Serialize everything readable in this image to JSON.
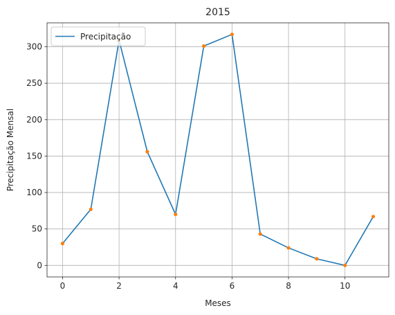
{
  "chart_data": {
    "type": "line",
    "title": "2015",
    "xlabel": "Meses",
    "ylabel": "Precipitação Mensal",
    "xlim": [
      -0.55,
      11.55
    ],
    "ylim": [
      -15.85,
      332.85
    ],
    "x_ticks": [
      0,
      2,
      4,
      6,
      8,
      10
    ],
    "y_ticks": [
      0,
      50,
      100,
      150,
      200,
      250,
      300
    ],
    "grid": true,
    "legend_position": "upper-left",
    "series": [
      {
        "name": "Precipitação",
        "color": "#1f77b4",
        "marker_color": "#ff7f0e",
        "x": [
          0,
          1,
          2,
          3,
          4,
          5,
          6,
          7,
          8,
          9,
          10,
          11
        ],
        "values": [
          30,
          77,
          309,
          156,
          70,
          301,
          317,
          43,
          24,
          9,
          0,
          67
        ]
      }
    ]
  }
}
